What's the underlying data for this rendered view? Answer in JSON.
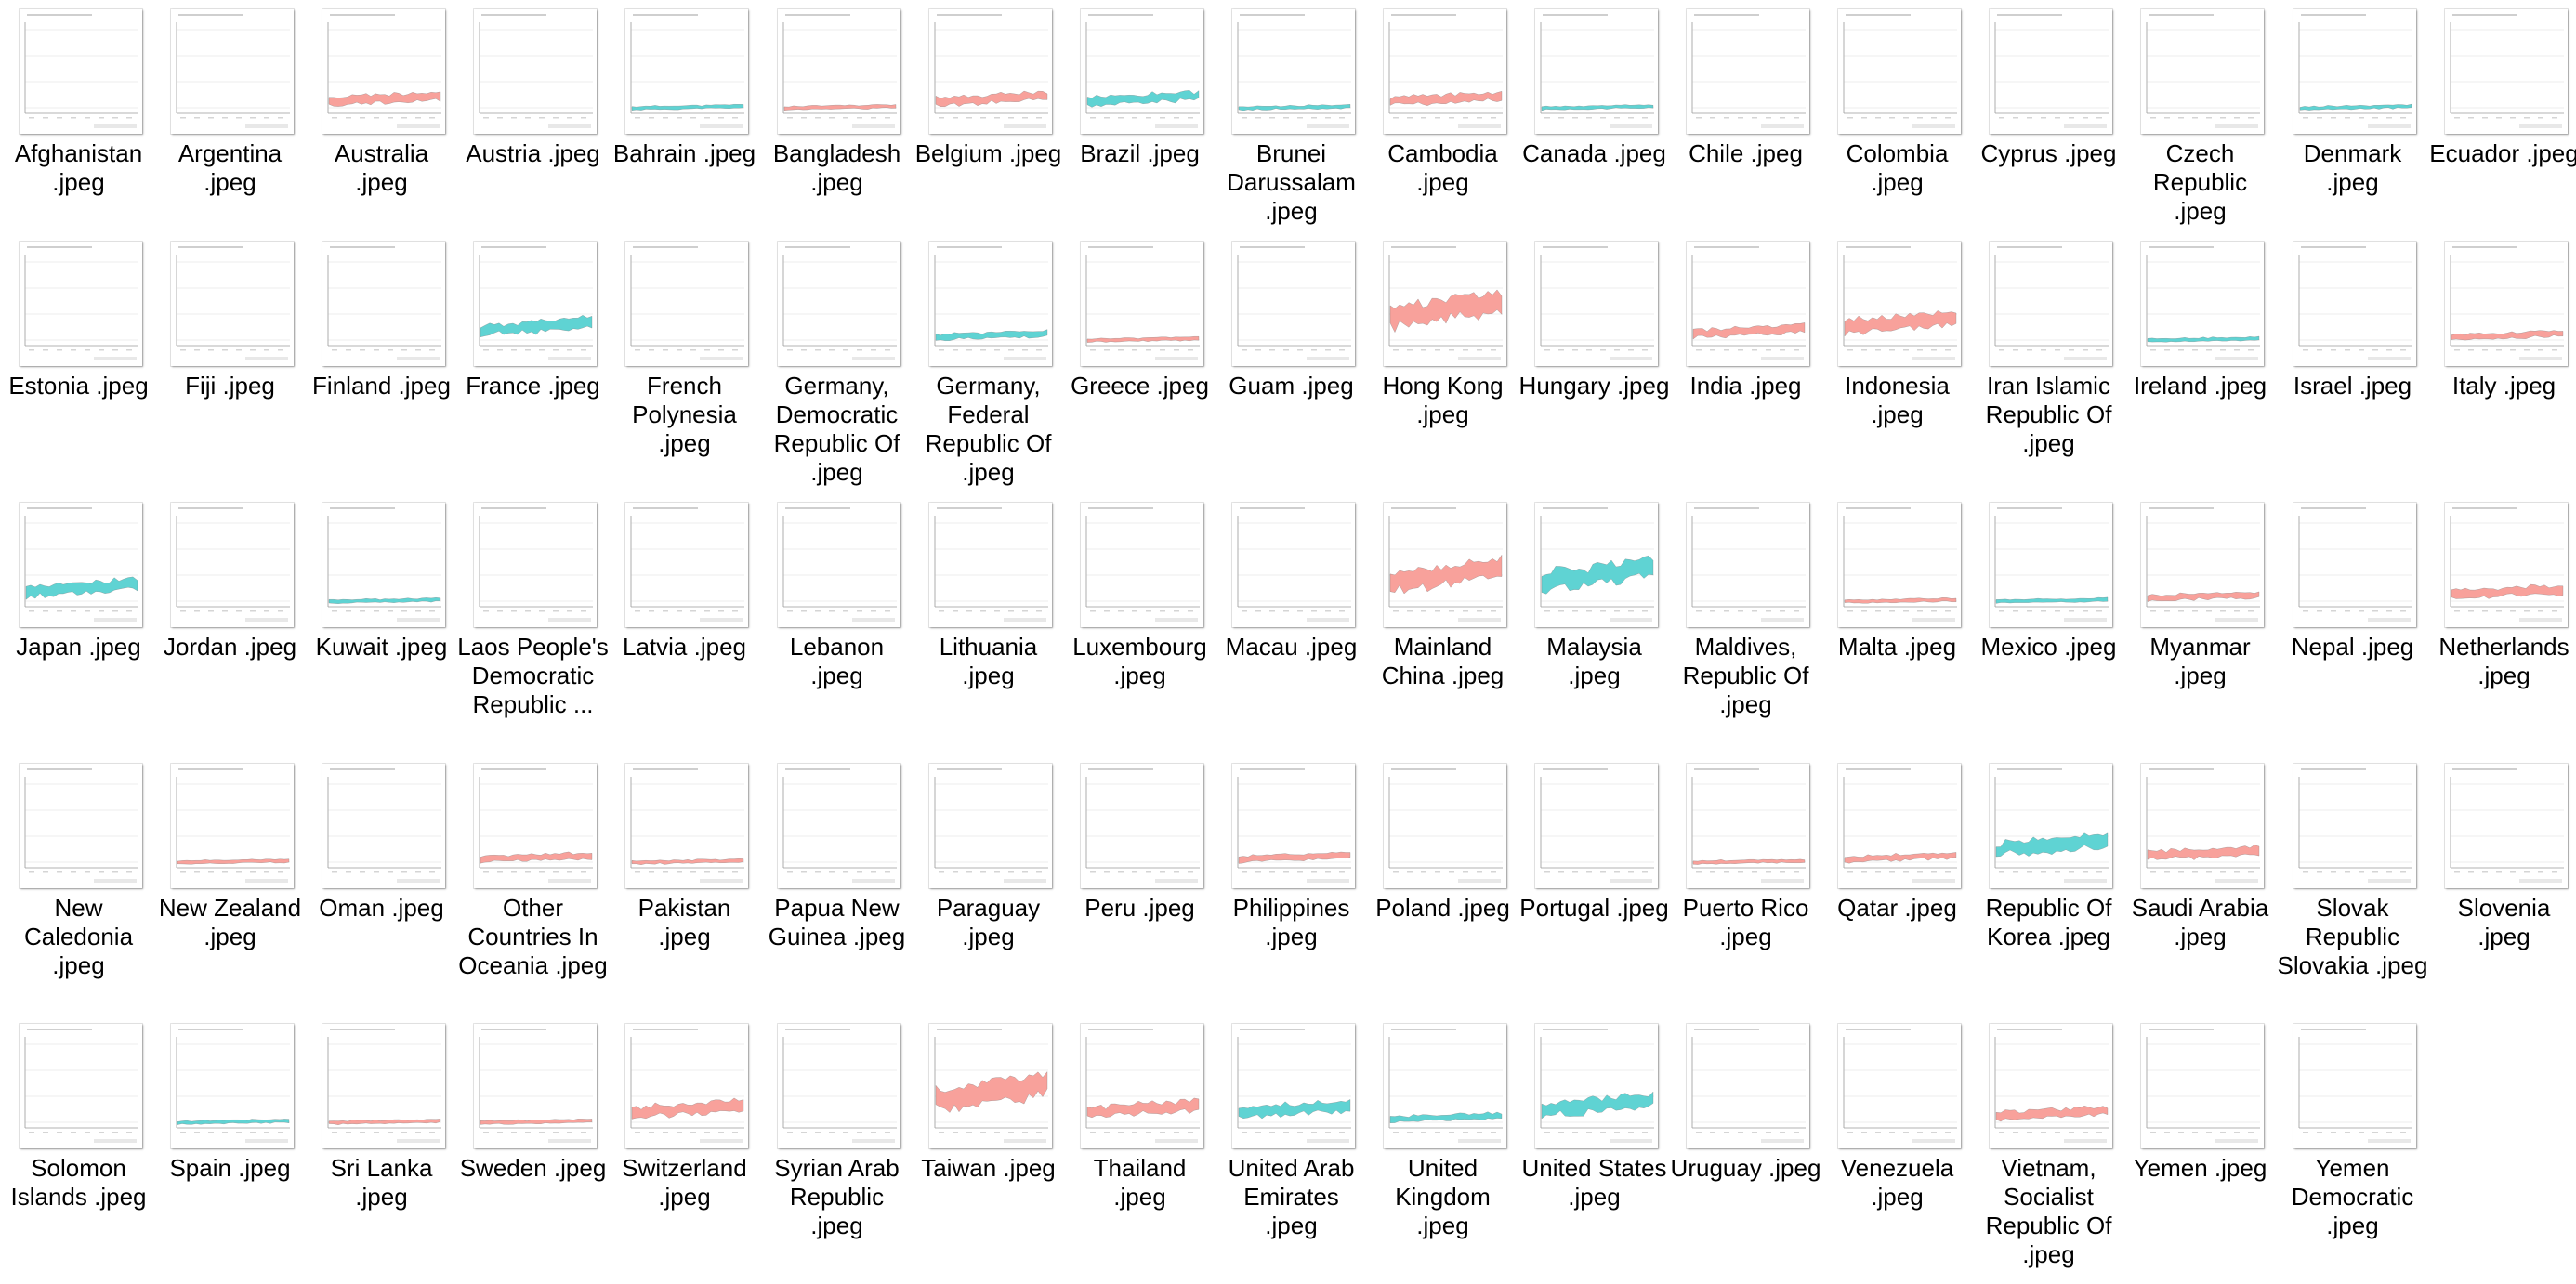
{
  "colors": {
    "export": "#f8a19b",
    "import": "#5fd3d3",
    "axis": "#9a9a9a",
    "grid": "#eeeeee",
    "text": "#000000"
  },
  "files": [
    {
      "label": "Afghanistan .jpeg",
      "color": "none",
      "amp": 0
    },
    {
      "label": "Argentina .jpeg",
      "color": "none",
      "amp": 0
    },
    {
      "label": "Australia .jpeg",
      "color": "export",
      "amp": 3
    },
    {
      "label": "Austria .jpeg",
      "color": "none",
      "amp": 0
    },
    {
      "label": "Bahrain .jpeg",
      "color": "import",
      "amp": 1
    },
    {
      "label": "Bangladesh .jpeg",
      "color": "export",
      "amp": 1
    },
    {
      "label": "Belgium .jpeg",
      "color": "export",
      "amp": 3
    },
    {
      "label": "Brazil .jpeg",
      "color": "import",
      "amp": 3
    },
    {
      "label": "Brunei Darussalam .jpeg",
      "color": "import",
      "amp": 1
    },
    {
      "label": "Cambodia .jpeg",
      "color": "export",
      "amp": 3
    },
    {
      "label": "Canada .jpeg",
      "color": "import",
      "amp": 1
    },
    {
      "label": "Chile .jpeg",
      "color": "none",
      "amp": 0
    },
    {
      "label": "Colombia .jpeg",
      "color": "none",
      "amp": 0
    },
    {
      "label": "Cyprus .jpeg",
      "color": "none",
      "amp": 0
    },
    {
      "label": "Czech Republic .jpeg",
      "color": "none",
      "amp": 0
    },
    {
      "label": "Denmark .jpeg",
      "color": "import",
      "amp": 1
    },
    {
      "label": "Ecuador .jpeg",
      "color": "none",
      "amp": 0
    },
    {
      "label": "Estonia .jpeg",
      "color": "none",
      "amp": 0
    },
    {
      "label": "Fiji .jpeg",
      "color": "none",
      "amp": 0
    },
    {
      "label": "Finland .jpeg",
      "color": "none",
      "amp": 0
    },
    {
      "label": "France .jpeg",
      "color": "import",
      "amp": 4
    },
    {
      "label": "French Polynesia .jpeg",
      "color": "none",
      "amp": 0
    },
    {
      "label": "Germany, Democratic Republic Of .jpeg",
      "color": "none",
      "amp": 0
    },
    {
      "label": "Germany, Federal Republic Of .jpeg",
      "color": "import",
      "amp": 2
    },
    {
      "label": "Greece .jpeg",
      "color": "export",
      "amp": 1
    },
    {
      "label": "Guam .jpeg",
      "color": "none",
      "amp": 0
    },
    {
      "label": "Hong Kong .jpeg",
      "color": "export",
      "amp": 8
    },
    {
      "label": "Hungary .jpeg",
      "color": "none",
      "amp": 0
    },
    {
      "label": "India .jpeg",
      "color": "export",
      "amp": 3
    },
    {
      "label": "Indonesia .jpeg",
      "color": "export",
      "amp": 5
    },
    {
      "label": "Iran Islamic Republic Of .jpeg",
      "color": "none",
      "amp": 0
    },
    {
      "label": "Ireland .jpeg",
      "color": "import",
      "amp": 1
    },
    {
      "label": "Israel .jpeg",
      "color": "none",
      "amp": 0
    },
    {
      "label": "Italy .jpeg",
      "color": "export",
      "amp": 2
    },
    {
      "label": "Japan .jpeg",
      "color": "import",
      "amp": 4
    },
    {
      "label": "Jordan .jpeg",
      "color": "none",
      "amp": 0
    },
    {
      "label": "Kuwait .jpeg",
      "color": "import",
      "amp": 1
    },
    {
      "label": "Laos People's Democratic Republic ...",
      "color": "none",
      "amp": 0
    },
    {
      "label": "Latvia .jpeg",
      "color": "none",
      "amp": 0
    },
    {
      "label": "Lebanon .jpeg",
      "color": "none",
      "amp": 0
    },
    {
      "label": "Lithuania .jpeg",
      "color": "none",
      "amp": 0
    },
    {
      "label": "Luxembourg .jpeg",
      "color": "none",
      "amp": 0
    },
    {
      "label": "Macau .jpeg",
      "color": "none",
      "amp": 0
    },
    {
      "label": "Mainland China .jpeg",
      "color": "export",
      "amp": 7
    },
    {
      "label": "Malaysia .jpeg",
      "color": "import",
      "amp": 7
    },
    {
      "label": "Maldives, Republic Of .jpeg",
      "color": "none",
      "amp": 0
    },
    {
      "label": "Malta .jpeg",
      "color": "export",
      "amp": 1
    },
    {
      "label": "Mexico .jpeg",
      "color": "import",
      "amp": 1
    },
    {
      "label": "Myanmar .jpeg",
      "color": "export",
      "amp": 2
    },
    {
      "label": "Nepal .jpeg",
      "color": "none",
      "amp": 0
    },
    {
      "label": "Netherlands .jpeg",
      "color": "export",
      "amp": 3
    },
    {
      "label": "New Caledonia .jpeg",
      "color": "none",
      "amp": 0
    },
    {
      "label": "New Zealand .jpeg",
      "color": "export",
      "amp": 1
    },
    {
      "label": "Oman .jpeg",
      "color": "none",
      "amp": 0
    },
    {
      "label": "Other Countries In Oceania .jpeg",
      "color": "export",
      "amp": 2
    },
    {
      "label": "Pakistan .jpeg",
      "color": "export",
      "amp": 1
    },
    {
      "label": "Papua New Guinea .jpeg",
      "color": "none",
      "amp": 0
    },
    {
      "label": "Paraguay .jpeg",
      "color": "none",
      "amp": 0
    },
    {
      "label": "Peru .jpeg",
      "color": "none",
      "amp": 0
    },
    {
      "label": "Philippines .jpeg",
      "color": "export",
      "amp": 2
    },
    {
      "label": "Poland .jpeg",
      "color": "none",
      "amp": 0
    },
    {
      "label": "Portugal .jpeg",
      "color": "none",
      "amp": 0
    },
    {
      "label": "Puerto Rico .jpeg",
      "color": "export",
      "amp": 1
    },
    {
      "label": "Qatar .jpeg",
      "color": "export",
      "amp": 2
    },
    {
      "label": "Republic Of Korea .jpeg",
      "color": "import",
      "amp": 5
    },
    {
      "label": "Saudi Arabia .jpeg",
      "color": "export",
      "amp": 3
    },
    {
      "label": "Slovak Republic Slovakia .jpeg",
      "color": "none",
      "amp": 0
    },
    {
      "label": "Slovenia .jpeg",
      "color": "none",
      "amp": 0
    },
    {
      "label": "Solomon Islands .jpeg",
      "color": "none",
      "amp": 0
    },
    {
      "label": "Spain .jpeg",
      "color": "import",
      "amp": 1
    },
    {
      "label": "Sri Lanka .jpeg",
      "color": "export",
      "amp": 1
    },
    {
      "label": "Sweden .jpeg",
      "color": "export",
      "amp": 1
    },
    {
      "label": "Switzerland .jpeg",
      "color": "export",
      "amp": 4
    },
    {
      "label": "Syrian Arab Republic .jpeg",
      "color": "none",
      "amp": 0
    },
    {
      "label": "Taiwan .jpeg",
      "color": "export",
      "amp": 8
    },
    {
      "label": "Thailand .jpeg",
      "color": "export",
      "amp": 4
    },
    {
      "label": "United Arab Emirates .jpeg",
      "color": "import",
      "amp": 4
    },
    {
      "label": "United Kingdom .jpeg",
      "color": "import",
      "amp": 2
    },
    {
      "label": "United States .jpeg",
      "color": "import",
      "amp": 5
    },
    {
      "label": "Uruguay .jpeg",
      "color": "none",
      "amp": 0
    },
    {
      "label": "Venezuela .jpeg",
      "color": "none",
      "amp": 0
    },
    {
      "label": "Vietnam, Socialist Republic Of .jpeg",
      "color": "export",
      "amp": 3
    },
    {
      "label": "Yemen .jpeg",
      "color": "none",
      "amp": 0
    },
    {
      "label": "Yemen Democratic .jpeg",
      "color": "none",
      "amp": 0
    }
  ]
}
